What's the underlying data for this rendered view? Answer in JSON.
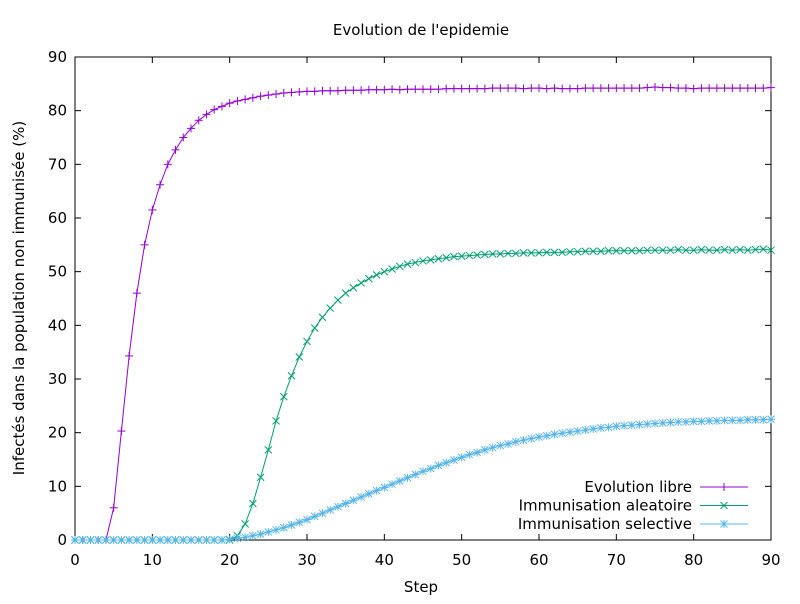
{
  "chart_data": {
    "type": "line",
    "title": "Evolution de l'epidemie",
    "xlabel": "Step",
    "ylabel": "Infectés dans la population non immunisée (%)",
    "xlim": [
      0,
      90
    ],
    "ylim": [
      0,
      90
    ],
    "xticks": [
      0,
      10,
      20,
      30,
      40,
      50,
      60,
      70,
      80,
      90
    ],
    "yticks": [
      0,
      10,
      20,
      30,
      40,
      50,
      60,
      70,
      80,
      90
    ],
    "legend_position": "bottom-right",
    "grid": false,
    "series": [
      {
        "name": "Evolution libre",
        "color": "#9400d3",
        "marker": "plus",
        "x": [
          0,
          1,
          2,
          3,
          4,
          5,
          6,
          7,
          8,
          9,
          10,
          11,
          12,
          13,
          14,
          15,
          16,
          17,
          18,
          19,
          20,
          21,
          22,
          23,
          24,
          25,
          26,
          27,
          28,
          29,
          30,
          31,
          32,
          33,
          34,
          35,
          36,
          37,
          38,
          39,
          40,
          41,
          42,
          43,
          44,
          45,
          46,
          47,
          48,
          49,
          50,
          51,
          52,
          53,
          54,
          55,
          56,
          57,
          58,
          59,
          60,
          61,
          62,
          63,
          64,
          65,
          66,
          67,
          68,
          69,
          70,
          71,
          72,
          73,
          74,
          75,
          76,
          77,
          78,
          79,
          80,
          81,
          82,
          83,
          84,
          85,
          86,
          87,
          88,
          89,
          90
        ],
        "values": [
          0,
          0,
          0,
          0,
          0,
          6,
          20.3,
          34.3,
          46,
          55,
          61.5,
          66.2,
          70,
          72.7,
          75,
          76.7,
          78.2,
          79.3,
          80.2,
          80.8,
          81.4,
          81.8,
          82.1,
          82.4,
          82.7,
          82.9,
          83.1,
          83.3,
          83.4,
          83.5,
          83.6,
          83.6,
          83.7,
          83.7,
          83.7,
          83.8,
          83.8,
          83.8,
          83.9,
          83.9,
          83.9,
          84,
          83.9,
          84,
          84,
          84,
          84,
          84,
          84.1,
          84.1,
          84.1,
          84.1,
          84.1,
          84.1,
          84.2,
          84.2,
          84.2,
          84.2,
          84.1,
          84.2,
          84.2,
          84.1,
          84.2,
          84.1,
          84.1,
          84.1,
          84.2,
          84.2,
          84.2,
          84.2,
          84.2,
          84.2,
          84.2,
          84.2,
          84.3,
          84.4,
          84.3,
          84.3,
          84.2,
          84.2,
          84.1,
          84.2,
          84.2,
          84.2,
          84.2,
          84.2,
          84.2,
          84.2,
          84.2,
          84.2,
          84.3
        ]
      },
      {
        "name": "Immunisation aleatoire",
        "color": "#009e73",
        "marker": "cross",
        "x": [
          0,
          1,
          2,
          3,
          4,
          5,
          6,
          7,
          8,
          9,
          10,
          11,
          12,
          13,
          14,
          15,
          16,
          17,
          18,
          19,
          20,
          21,
          22,
          23,
          24,
          25,
          26,
          27,
          28,
          29,
          30,
          31,
          32,
          33,
          34,
          35,
          36,
          37,
          38,
          39,
          40,
          41,
          42,
          43,
          44,
          45,
          46,
          47,
          48,
          49,
          50,
          51,
          52,
          53,
          54,
          55,
          56,
          57,
          58,
          59,
          60,
          61,
          62,
          63,
          64,
          65,
          66,
          67,
          68,
          69,
          70,
          71,
          72,
          73,
          74,
          75,
          76,
          77,
          78,
          79,
          80,
          81,
          82,
          83,
          84,
          85,
          86,
          87,
          88,
          89,
          90
        ],
        "values": [
          0,
          0,
          0,
          0,
          0,
          0,
          0,
          0,
          0,
          0,
          0,
          0,
          0,
          0,
          0,
          0,
          0,
          0,
          0,
          0,
          0,
          0.8,
          3,
          6.8,
          11.7,
          16.8,
          22.2,
          26.7,
          30.6,
          34.1,
          37,
          39.5,
          41.5,
          43.2,
          44.7,
          46,
          47,
          47.9,
          48.7,
          49.4,
          50,
          50.5,
          51,
          51.4,
          51.7,
          52,
          52.2,
          52.4,
          52.6,
          52.8,
          52.9,
          53,
          53.1,
          53.2,
          53.3,
          53.3,
          53.4,
          53.4,
          53.5,
          53.5,
          53.5,
          53.6,
          53.6,
          53.6,
          53.7,
          53.7,
          53.8,
          53.8,
          53.8,
          53.9,
          53.9,
          53.9,
          53.9,
          53.9,
          54,
          54,
          54,
          54,
          54.1,
          54,
          54,
          54.1,
          54,
          54,
          54.1,
          54,
          54.1,
          54,
          54.1,
          54.2,
          54
        ]
      },
      {
        "name": "Immunisation selective",
        "color": "#56b4e9",
        "marker": "star",
        "x": [
          0,
          1,
          2,
          3,
          4,
          5,
          6,
          7,
          8,
          9,
          10,
          11,
          12,
          13,
          14,
          15,
          16,
          17,
          18,
          19,
          20,
          21,
          22,
          23,
          24,
          25,
          26,
          27,
          28,
          29,
          30,
          31,
          32,
          33,
          34,
          35,
          36,
          37,
          38,
          39,
          40,
          41,
          42,
          43,
          44,
          45,
          46,
          47,
          48,
          49,
          50,
          51,
          52,
          53,
          54,
          55,
          56,
          57,
          58,
          59,
          60,
          61,
          62,
          63,
          64,
          65,
          66,
          67,
          68,
          69,
          70,
          71,
          72,
          73,
          74,
          75,
          76,
          77,
          78,
          79,
          80,
          81,
          82,
          83,
          84,
          85,
          86,
          87,
          88,
          89,
          90
        ],
        "values": [
          0,
          0,
          0,
          0,
          0,
          0,
          0,
          0,
          0,
          0,
          0,
          0,
          0,
          0,
          0,
          0,
          0,
          0,
          0,
          0,
          0.1,
          0.3,
          0.5,
          0.8,
          1.1,
          1.5,
          1.9,
          2.3,
          2.8,
          3.3,
          3.8,
          4.4,
          5,
          5.6,
          6.2,
          6.8,
          7.4,
          8,
          8.6,
          9.2,
          9.8,
          10.4,
          11,
          11.6,
          12.2,
          12.8,
          13.3,
          13.9,
          14.4,
          14.9,
          15.4,
          15.9,
          16.3,
          16.8,
          17.2,
          17.6,
          17.9,
          18.3,
          18.6,
          18.9,
          19.2,
          19.4,
          19.7,
          19.9,
          20.1,
          20.3,
          20.5,
          20.7,
          20.9,
          21,
          21.2,
          21.3,
          21.4,
          21.5,
          21.6,
          21.7,
          21.8,
          21.9,
          22,
          22,
          22.1,
          22.1,
          22.2,
          22.2,
          22.3,
          22.3,
          22.3,
          22.4,
          22.4,
          22.4,
          22.5
        ]
      }
    ]
  }
}
